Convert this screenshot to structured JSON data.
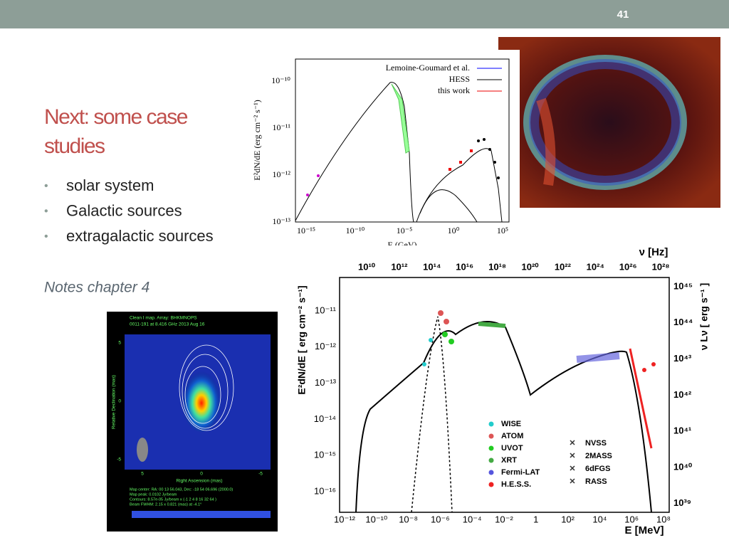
{
  "slide_number": "41",
  "title": "Next: some case studies",
  "bullets": [
    "solar system",
    "Galactic sources",
    "extragalactic sources"
  ],
  "note": "Notes chapter 4",
  "figure_snr": {
    "legend": [
      "Lemoine-Goumard et al.",
      "HESS",
      "this work"
    ],
    "y_label": "E²dN/dE (erg cm⁻² s⁻¹)",
    "x_label": "E (GeV)",
    "y_ticks": [
      "10⁻¹⁰",
      "10⁻¹¹",
      "10⁻¹²",
      "10⁻¹³"
    ],
    "x_ticks": [
      "10⁻¹⁵",
      "10⁻¹⁰",
      "10⁻⁵",
      "10⁰",
      "10⁵"
    ]
  },
  "figure_sed": {
    "top_label": "ν [Hz]",
    "top_ticks": [
      "10¹⁰",
      "10¹²",
      "10¹⁴",
      "10¹⁶",
      "10¹⁸",
      "10²⁰",
      "10²²",
      "10²⁴",
      "10²⁶",
      "10²⁸"
    ],
    "y_label": "E²dN/dE [ erg cm⁻² s⁻¹]",
    "y_ticks": [
      "10⁻¹¹",
      "10⁻¹²",
      "10⁻¹³",
      "10⁻¹⁴",
      "10⁻¹⁵",
      "10⁻¹⁶"
    ],
    "y2_label": "ν Lν [ erg s⁻¹ ]",
    "y2_ticks": [
      "10⁴⁵",
      "10⁴⁴",
      "10⁴³",
      "10⁴²",
      "10⁴¹",
      "10⁴⁰",
      "10³⁹"
    ],
    "x_ticks": [
      "10⁻¹²",
      "10⁻¹⁰",
      "10⁻⁸",
      "10⁻⁶",
      "10⁻⁴",
      "10⁻²",
      "1",
      "10²",
      "10⁴",
      "10⁶",
      "10⁸"
    ],
    "x_label": "E [MeV]",
    "legend_left": [
      "WISE",
      "ATOM",
      "UVOT",
      "XRT",
      "Fermi-LAT",
      "H.E.S.S."
    ],
    "legend_right": [
      "NVSS",
      "2MASS",
      "6dFGS",
      "RASS"
    ]
  },
  "figure_radio": {
    "header": [
      "Clean I map. Array: BHKMNOPS",
      "0011-191 at 8.416 GHz 2013 Aug 16"
    ],
    "y_label": "Relative Declination (mas)",
    "x_label": "Right Ascension (mas)",
    "y_ticks": [
      "5",
      "0",
      "-5"
    ],
    "x_ticks": [
      "5",
      "0",
      "-5"
    ],
    "footer": [
      "Map center: RA: 00 13 56.043, Dec: -18 54 06.696 (2000.0)",
      "Map peak: 0.0102 Jy/beam",
      "Contours: 8.57e-05 Jy/beam x (-1 2 4 8 16 32 64 )",
      "Beam FWHM: 2.15 x 0.821 (mas) at -4.1°"
    ]
  }
}
